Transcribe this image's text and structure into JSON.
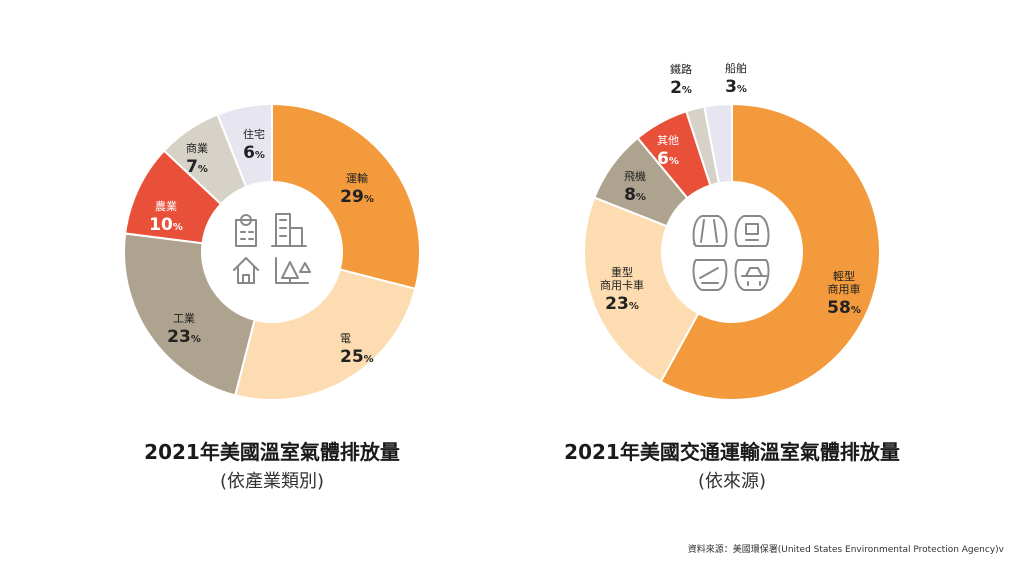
{
  "colors": {
    "orange": "#f29a3c",
    "peach": "#fcdcb0",
    "taupe": "#aea38e",
    "red": "#e8503a",
    "light_taupe": "#d7d2c8",
    "lavender": "#e7e6f0",
    "icon_gray": "#888888"
  },
  "chart_data": [
    {
      "type": "pie",
      "title": "2021年美國溫室氣體排放量",
      "subtitle": "(依產業類別)",
      "center_icons": [
        "building-icon",
        "office-tower-icon",
        "house-icon",
        "factory-icon"
      ],
      "slices": [
        {
          "name": "運輸",
          "value": 29,
          "display": "29%",
          "color": "#f29a3c"
        },
        {
          "name": "電",
          "value": 25,
          "display": "25%",
          "color": "#fcdcb0"
        },
        {
          "name": "工業",
          "value": 23,
          "display": "23%",
          "color": "#aea38e"
        },
        {
          "name": "農業",
          "value": 10,
          "display": "10%",
          "color": "#e8503a"
        },
        {
          "name": "商業",
          "value": 7,
          "display": "7%",
          "color": "#d7d2c8"
        },
        {
          "name": "住宅",
          "value": 6,
          "display": "6%",
          "color": "#e7e6f0"
        }
      ]
    },
    {
      "type": "pie",
      "title": "2021年美國交通運輸溫室氣體排放量",
      "subtitle": "(依來源)",
      "center_icons": [
        "road-icon",
        "truck-icon",
        "airplane-icon",
        "car-icon"
      ],
      "slices": [
        {
          "name": "輕型\n商用車",
          "value": 58,
          "display": "58%",
          "color": "#f29a3c"
        },
        {
          "name": "重型\n商用卡車",
          "value": 23,
          "display": "23%",
          "color": "#fcdcb0"
        },
        {
          "name": "飛機",
          "value": 8,
          "display": "8%",
          "color": "#aea38e"
        },
        {
          "name": "其他",
          "value": 6,
          "display": "6%",
          "color": "#e8503a"
        },
        {
          "name": "鐵路",
          "value": 2,
          "display": "2%",
          "color": "#d7d2c8"
        },
        {
          "name": "船舶",
          "value": 3,
          "display": "3%",
          "color": "#e7e6f0"
        }
      ]
    }
  ],
  "source": "資料來源：美國環保署(United States Environmental Protection Agency)v"
}
